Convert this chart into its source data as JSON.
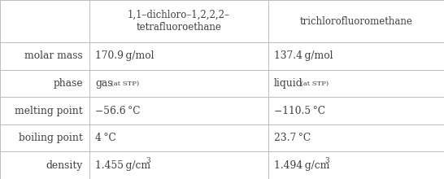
{
  "col_headers": [
    "",
    "1,1–dichloro–1,2,2,2–\ntetrafluoroethane",
    "trichlorofluoromethane"
  ],
  "row_headers": [
    "molar mass",
    "phase",
    "melting point",
    "boiling point",
    "density"
  ],
  "col1_main": [
    "170.9 g/mol",
    "gas",
    "−56.6 °C",
    "4 °C",
    "1.455 g/cm³"
  ],
  "col1_small": [
    "",
    " (at STP)",
    "",
    "",
    ""
  ],
  "col1_sup": [
    false,
    false,
    false,
    false,
    true
  ],
  "col2_main": [
    "137.4 g/mol",
    "liquid",
    "−110.5 °C",
    "23.7 °C",
    "1.494 g/cm³"
  ],
  "col2_small": [
    "",
    " (at STP)",
    "",
    "",
    ""
  ],
  "col2_sup": [
    false,
    false,
    false,
    false,
    true
  ],
  "line_color": "#bbbbbb",
  "bg_color": "#ffffff",
  "text_color": "#404040",
  "fig_width": 5.46,
  "fig_height": 2.2,
  "dpi": 100
}
